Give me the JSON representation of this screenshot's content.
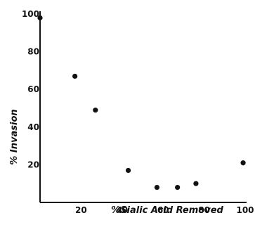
{
  "chart_data": {
    "type": "scatter",
    "title": "",
    "xlabel": "%Sialic  Acid  Removed",
    "ylabel": "% Invasion",
    "xlim": [
      0,
      100
    ],
    "ylim": [
      0,
      100
    ],
    "x_ticks": [
      20,
      40,
      60,
      80,
      100
    ],
    "x_tick_labels": [
      "20",
      "40",
      "60",
      "80",
      "100"
    ],
    "y_ticks": [
      20,
      40,
      60,
      80,
      100
    ],
    "y_tick_labels": [
      "20",
      "40",
      "60",
      "80",
      "100"
    ],
    "grid": false,
    "legend": "none",
    "series": [
      {
        "name": "",
        "color": "#111111",
        "x": [
          0,
          17,
          27,
          43,
          57,
          67,
          76,
          99
        ],
        "y": [
          98,
          67,
          49,
          17,
          8,
          8,
          10,
          21
        ]
      }
    ]
  }
}
